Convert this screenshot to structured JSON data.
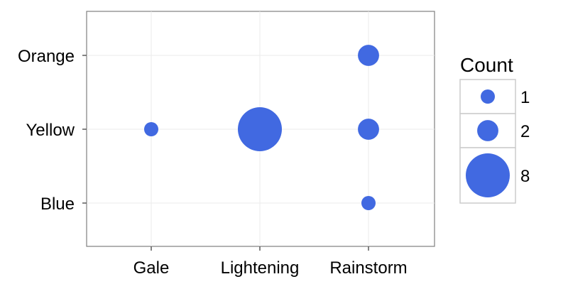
{
  "chart_data": {
    "type": "scatter",
    "title": "",
    "xlabel": "",
    "ylabel": "",
    "x_categories": [
      "Gale",
      "Lightening",
      "Rainstorm"
    ],
    "y_categories": [
      "Blue",
      "Yellow",
      "Orange"
    ],
    "points": [
      {
        "x": "Gale",
        "y": "Yellow",
        "count": 1
      },
      {
        "x": "Lightening",
        "y": "Yellow",
        "count": 8
      },
      {
        "x": "Rainstorm",
        "y": "Orange",
        "count": 2
      },
      {
        "x": "Rainstorm",
        "y": "Yellow",
        "count": 2
      },
      {
        "x": "Rainstorm",
        "y": "Blue",
        "count": 1
      }
    ],
    "size_legend": {
      "title": "Count",
      "entries": [
        {
          "label": "1",
          "value": 1
        },
        {
          "label": "2",
          "value": 2
        },
        {
          "label": "8",
          "value": 8
        }
      ]
    },
    "grid": true,
    "legend_position": "right",
    "point_color": "#4169E1"
  }
}
